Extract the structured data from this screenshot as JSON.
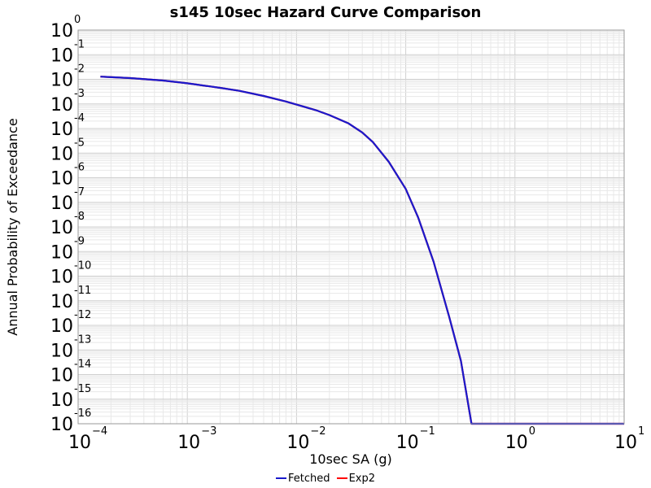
{
  "chart_data": {
    "type": "line",
    "title": "s145 10sec Hazard Curve Comparison",
    "xlabel": "10sec SA (g)",
    "ylabel": "Annual Probability of Exceedance",
    "x_scale": "log",
    "y_scale": "log",
    "xlim": [
      0.0001,
      10
    ],
    "ylim": [
      1e-16,
      1
    ],
    "grid": true,
    "legend_position": "bottom",
    "x_ticks": [
      {
        "base": "10",
        "exp": "−4",
        "value": 0.0001
      },
      {
        "base": "10",
        "exp": "−3",
        "value": 0.001
      },
      {
        "base": "10",
        "exp": "−2",
        "value": 0.01
      },
      {
        "base": "10",
        "exp": "−1",
        "value": 0.1
      },
      {
        "base": "10",
        "exp": "0",
        "value": 1
      },
      {
        "base": "10",
        "exp": "1",
        "value": 10
      }
    ],
    "y_ticks": [
      {
        "base": "10",
        "exp": "0",
        "value": 1
      },
      {
        "base": "10",
        "exp": "-1",
        "value": 0.1
      },
      {
        "base": "10",
        "exp": "-2",
        "value": 0.01
      },
      {
        "base": "10",
        "exp": "-3",
        "value": 0.001
      },
      {
        "base": "10",
        "exp": "-4",
        "value": 0.0001
      },
      {
        "base": "10",
        "exp": "-5",
        "value": 1e-05
      },
      {
        "base": "10",
        "exp": "-6",
        "value": 1e-06
      },
      {
        "base": "10",
        "exp": "-7",
        "value": 1e-07
      },
      {
        "base": "10",
        "exp": "-8",
        "value": 1e-08
      },
      {
        "base": "10",
        "exp": "-9",
        "value": 1e-09
      },
      {
        "base": "10",
        "exp": "-10",
        "value": 1e-10
      },
      {
        "base": "10",
        "exp": "-11",
        "value": 1e-11
      },
      {
        "base": "10",
        "exp": "-12",
        "value": 1e-12
      },
      {
        "base": "10",
        "exp": "-13",
        "value": 1e-13
      },
      {
        "base": "10",
        "exp": "-14",
        "value": 1e-14
      },
      {
        "base": "10",
        "exp": "-15",
        "value": 1e-15
      },
      {
        "base": "10",
        "exp": "-16",
        "value": 1e-16
      }
    ],
    "series": [
      {
        "name": "Fetched",
        "color": "#1a1acc",
        "x": [
          0.00016,
          0.0003,
          0.0006,
          0.001,
          0.002,
          0.003,
          0.005,
          0.008,
          0.01,
          0.015,
          0.02,
          0.03,
          0.04,
          0.05,
          0.07,
          0.1,
          0.13,
          0.18,
          0.25,
          0.32,
          0.4,
          1,
          10
        ],
        "y": [
          0.0129,
          0.0112,
          0.0089,
          0.0069,
          0.0045,
          0.0034,
          0.0021,
          0.00125,
          0.00094,
          0.00056,
          0.00035,
          0.00016,
          6.9e-05,
          2.8e-05,
          4.4e-06,
          3.5e-07,
          2.4e-08,
          3.8e-10,
          2.2e-12,
          3.6e-14,
          1e-16,
          1e-16,
          1e-16
        ]
      },
      {
        "name": "Exp2",
        "color": "#ff0000",
        "x": [
          0.00016,
          0.0003,
          0.0006,
          0.001,
          0.002,
          0.003,
          0.005,
          0.008,
          0.01,
          0.015,
          0.02,
          0.03,
          0.04,
          0.05,
          0.07,
          0.1,
          0.13,
          0.18,
          0.25,
          0.32,
          0.4,
          1,
          10
        ],
        "y": [
          0.0129,
          0.0112,
          0.0089,
          0.0069,
          0.0045,
          0.0034,
          0.0021,
          0.00125,
          0.00094,
          0.00056,
          0.00035,
          0.00016,
          6.9e-05,
          2.8e-05,
          4.4e-06,
          3.5e-07,
          2.4e-08,
          3.8e-10,
          2.2e-12,
          3.6e-14,
          1e-16,
          1e-16,
          1e-16
        ]
      }
    ]
  }
}
